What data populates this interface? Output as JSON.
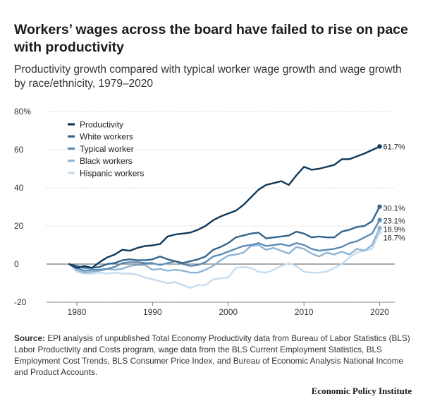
{
  "header": {
    "title": "Workers’ wages across the board have failed to rise on pace with productivity",
    "subtitle": "Productivity growth compared with typical worker wage growth and wage growth by race/ethnicity, 1979–2020"
  },
  "footer": {
    "source_label": "Source:",
    "source_text": "EPI analysis of unpublished Total Economy Productivity data from Bureau of Labor Statistics (BLS) Labor Productivity and Costs program, wage data from the BLS Current Employment Statistics, BLS Employment Cost Trends, BLS Consumer Price Index, and Bureau of Economic Analysis National Income and Product Accounts.",
    "brand": "Economic Policy Institute"
  },
  "chart_data": {
    "type": "line",
    "xlim": [
      1976,
      2022
    ],
    "ylim": [
      -20,
      80
    ],
    "xticks": [
      1980,
      1990,
      2000,
      2010,
      2020
    ],
    "yticks": [
      {
        "value": 80,
        "label": "80%"
      },
      {
        "value": 60,
        "label": "60"
      },
      {
        "value": 40,
        "label": "40"
      },
      {
        "value": 20,
        "label": "20"
      },
      {
        "value": 0,
        "label": "0"
      },
      {
        "value": -20,
        "label": "-20"
      }
    ],
    "x": [
      1979,
      1980,
      1981,
      1982,
      1983,
      1984,
      1985,
      1986,
      1987,
      1988,
      1989,
      1990,
      1991,
      1992,
      1993,
      1994,
      1995,
      1996,
      1997,
      1998,
      1999,
      2000,
      2001,
      2002,
      2003,
      2004,
      2005,
      2006,
      2007,
      2008,
      2009,
      2010,
      2011,
      2012,
      2013,
      2014,
      2015,
      2016,
      2017,
      2018,
      2019,
      2020
    ],
    "legend_position": "top-left",
    "series": [
      {
        "name": "Productivity",
        "color": "#0f3a5c",
        "end_label": "61.7%",
        "values": [
          0,
          -2,
          -1,
          -2,
          1,
          3.5,
          5,
          7.5,
          7,
          8.5,
          9.5,
          9.8,
          10.5,
          14.5,
          15.5,
          16,
          16.5,
          18,
          20,
          23,
          25,
          26.5,
          28,
          31,
          35,
          39,
          41.5,
          42.5,
          43.5,
          41.5,
          46.5,
          51,
          49.5,
          50,
          51,
          52,
          55,
          55,
          56.5,
          58,
          59.8,
          61.7
        ]
      },
      {
        "name": "White workers",
        "color": "#35658c",
        "end_label": "30.1%",
        "values": [
          0,
          -1,
          -2,
          -2,
          -1.5,
          0,
          0.5,
          2,
          2.5,
          2,
          2,
          2.5,
          4,
          2.5,
          1.5,
          0.5,
          1.5,
          2.5,
          4,
          7.5,
          9,
          11,
          14,
          15,
          16,
          16.5,
          13.5,
          14,
          14.5,
          15,
          17,
          16,
          14,
          14.5,
          14,
          14,
          17,
          18,
          19.5,
          20,
          22.5,
          30.1
        ]
      },
      {
        "name": "Typical worker",
        "color": "#5e8db5",
        "end_label": "23.1%",
        "values": [
          0,
          -2,
          -3.5,
          -3,
          -3,
          -2.5,
          -1.5,
          0.5,
          1,
          1,
          0.5,
          0.5,
          -0.5,
          0.5,
          1.5,
          0,
          -1,
          -0.5,
          1,
          4,
          5,
          6.5,
          8,
          9.5,
          10,
          11,
          9.5,
          10,
          10.5,
          9.5,
          11,
          10,
          8,
          7,
          7.5,
          8,
          9,
          11,
          12,
          14,
          16,
          23.1
        ]
      },
      {
        "name": "Black workers",
        "color": "#8fb4d4",
        "end_label": "18.9%",
        "values": [
          0,
          -3,
          -4.5,
          -4,
          -3.5,
          -2.5,
          -3,
          -2.5,
          -1,
          -0.5,
          -0.5,
          -3,
          -2.5,
          -3.5,
          -3,
          -3.5,
          -4.5,
          -4.5,
          -3,
          -1,
          2,
          4.5,
          5,
          6,
          9.5,
          10,
          7.5,
          8.5,
          7,
          5.5,
          9,
          8,
          5.5,
          4,
          6,
          5,
          6.5,
          5,
          8,
          7,
          10,
          18.9
        ]
      },
      {
        "name": "Hispanic workers",
        "color": "#c4dcef",
        "end_label": "16.7%",
        "values": [
          0,
          -4,
          -5,
          -5,
          -4.5,
          -5,
          -4.5,
          -5,
          -5,
          -5.5,
          -7,
          -8,
          -9,
          -10,
          -9.5,
          -11,
          -12.5,
          -11,
          -11,
          -8,
          -7.5,
          -7,
          -2,
          -1.5,
          -2,
          -4,
          -4.5,
          -3,
          -1,
          0.5,
          -1,
          -4,
          -4.5,
          -4.5,
          -4,
          -2,
          0,
          3.5,
          6,
          7,
          8,
          16.7
        ]
      }
    ]
  }
}
